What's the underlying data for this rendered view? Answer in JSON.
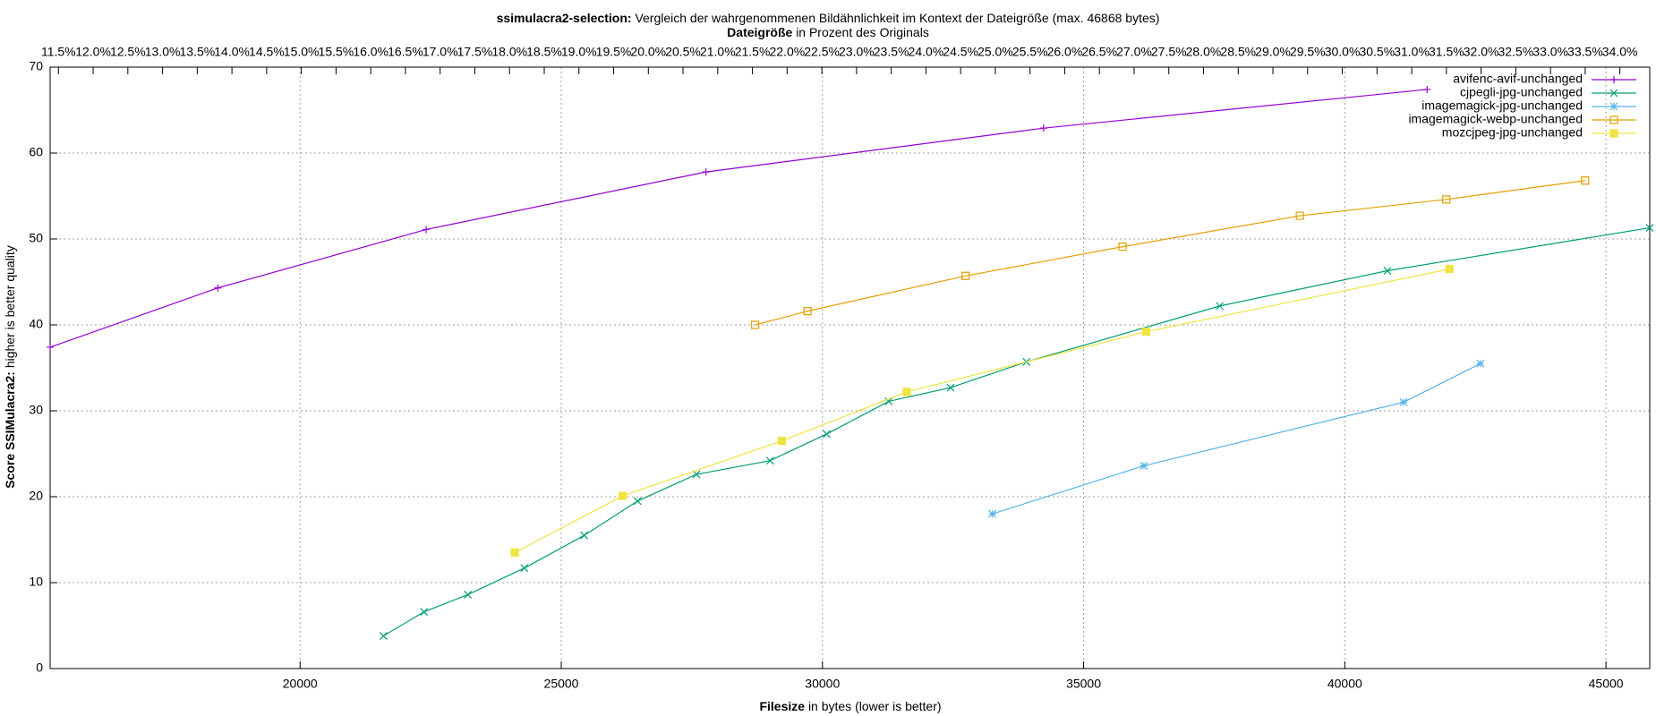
{
  "chart_data": {
    "type": "line",
    "title": {
      "bold": "ssimulacra2-selection:",
      "rest": "Vergleich der wahrgenommenen Bildähnlichkeit im Kontext der Dateigröße (max. 46868 bytes)"
    },
    "subtitle": {
      "bold": "Dateigröße",
      "rest": "in Prozent des Originals"
    },
    "x_label": {
      "bold": "Filesize",
      "rest": "in bytes (lower is better)"
    },
    "y_label": {
      "bold": "Score SSIMulacra2:",
      "rest": "higher is better quality"
    },
    "xlim": [
      15215,
      45838
    ],
    "xticks": [
      20000,
      25000,
      30000,
      35000,
      40000,
      45000
    ],
    "ylim": [
      0,
      70
    ],
    "yticks": [
      0,
      10,
      20,
      30,
      40,
      50,
      60,
      70
    ],
    "x2lim": [
      11.38,
      34.43
    ],
    "x2ticks": [
      {
        "value": 11.5,
        "label": "11.5%"
      },
      {
        "value": 12,
        "label": "12.0%"
      },
      {
        "value": 12.5,
        "label": "12.5%"
      },
      {
        "value": 13,
        "label": "13.0%"
      },
      {
        "value": 13.5,
        "label": "13.5%"
      },
      {
        "value": 14,
        "label": "14.0%"
      },
      {
        "value": 14.5,
        "label": "14.5%"
      },
      {
        "value": 15,
        "label": "15.0%"
      },
      {
        "value": 15.5,
        "label": "15.5%"
      },
      {
        "value": 16,
        "label": "16.0%"
      },
      {
        "value": 16.5,
        "label": "16.5%"
      },
      {
        "value": 17,
        "label": "17.0%"
      },
      {
        "value": 17.5,
        "label": "17.5%"
      },
      {
        "value": 18,
        "label": "18.0%"
      },
      {
        "value": 18.5,
        "label": "18.5%"
      },
      {
        "value": 19,
        "label": "19.0%"
      },
      {
        "value": 19.5,
        "label": "19.5%"
      },
      {
        "value": 20,
        "label": "20.0%"
      },
      {
        "value": 20.5,
        "label": "20.5%"
      },
      {
        "value": 21,
        "label": "21.0%"
      },
      {
        "value": 21.5,
        "label": "21.5%"
      },
      {
        "value": 22,
        "label": "22.0%"
      },
      {
        "value": 22.5,
        "label": "22.5%"
      },
      {
        "value": 23,
        "label": "23.0%"
      },
      {
        "value": 23.5,
        "label": "23.5%"
      },
      {
        "value": 24,
        "label": "24.0%"
      },
      {
        "value": 24.5,
        "label": "24.5%"
      },
      {
        "value": 25,
        "label": "25.0%"
      },
      {
        "value": 25.5,
        "label": "25.5%"
      },
      {
        "value": 26,
        "label": "26.0%"
      },
      {
        "value": 26.5,
        "label": "26.5%"
      },
      {
        "value": 27,
        "label": "27.0%"
      },
      {
        "value": 27.5,
        "label": "27.5%"
      },
      {
        "value": 28,
        "label": "28.0%"
      },
      {
        "value": 28.5,
        "label": "28.5%"
      },
      {
        "value": 29,
        "label": "29.0%"
      },
      {
        "value": 29.5,
        "label": "29.5%"
      },
      {
        "value": 30,
        "label": "30.0%"
      },
      {
        "value": 30.5,
        "label": "30.5%"
      },
      {
        "value": 31,
        "label": "31.0%"
      },
      {
        "value": 31.5,
        "label": "31.5%"
      },
      {
        "value": 32,
        "label": "32.0%"
      },
      {
        "value": 32.5,
        "label": "32.5%"
      },
      {
        "value": 33,
        "label": "33.0%"
      },
      {
        "value": 33.5,
        "label": "33.5%"
      },
      {
        "value": 34,
        "label": "34.0%"
      }
    ],
    "grid": true,
    "legend": "top-right",
    "series": [
      {
        "name": "avifenc-avif-unchanged",
        "color": "#9400d3",
        "marker": "plus",
        "x": [
          15215,
          18425,
          22413,
          27771,
          34234,
          41575
        ],
        "values": [
          37.4,
          44.3,
          51.1,
          57.8,
          62.9,
          67.4
        ]
      },
      {
        "name": "cjpegli-jpg-unchanged",
        "color": "#009e73",
        "marker": "cross",
        "x": [
          21595,
          22372,
          23211,
          24294,
          25440,
          26462,
          27587,
          28998,
          30082,
          31268,
          32454,
          33906,
          37607,
          40818,
          45838
        ],
        "values": [
          3.8,
          6.6,
          8.6,
          11.7,
          15.5,
          19.5,
          22.6,
          24.2,
          27.3,
          31.1,
          32.7,
          35.7,
          42.2,
          46.3,
          51.3
        ]
      },
      {
        "name": "imagemagick-jpg-unchanged",
        "color": "#56b4e9",
        "marker": "star",
        "x": [
          33252,
          36155,
          41125,
          42597
        ],
        "values": [
          18.0,
          23.6,
          31.0,
          35.5
        ]
      },
      {
        "name": "imagemagick-webp-unchanged",
        "color": "#e69f00",
        "marker": "square",
        "x": [
          28712,
          29714,
          32740,
          35746,
          39141,
          41943,
          44601
        ],
        "values": [
          40.0,
          41.6,
          45.7,
          49.1,
          52.7,
          54.6,
          56.8
        ]
      },
      {
        "name": "mozcjpeg-jpg-unchanged",
        "color": "#f0e442",
        "marker": "filled-square",
        "x": [
          24110,
          26176,
          29223,
          31616,
          36196,
          42004
        ],
        "values": [
          13.5,
          20.1,
          26.5,
          32.2,
          39.2,
          46.5
        ]
      }
    ]
  }
}
